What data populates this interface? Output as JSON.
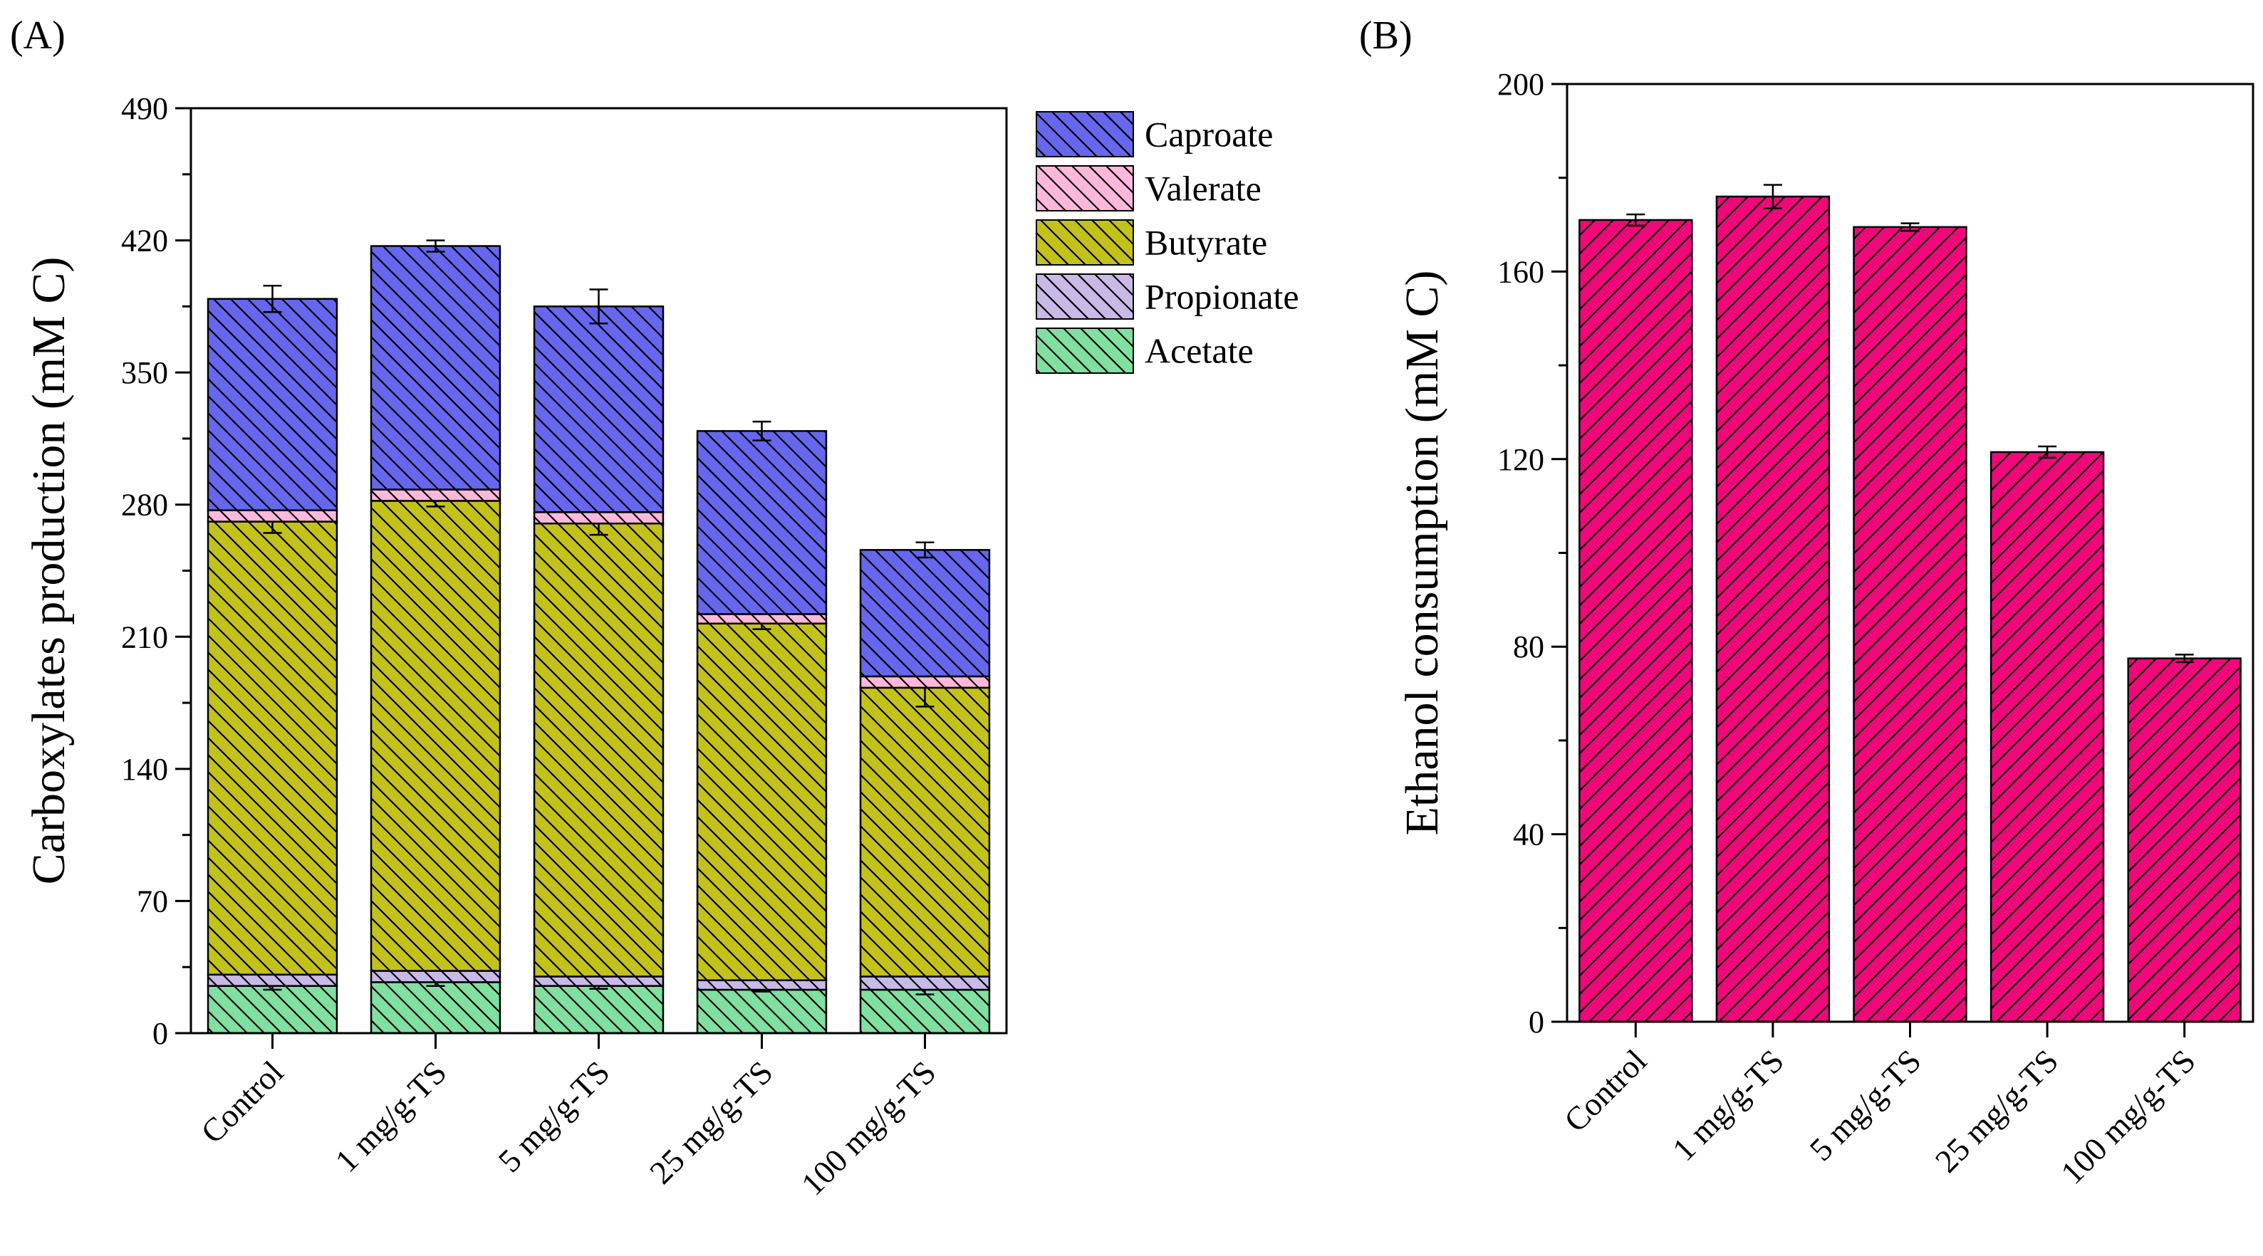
{
  "panels": {
    "a": {
      "label": "(A)"
    },
    "b": {
      "label": "(B)"
    }
  },
  "chart_data": [
    {
      "type": "bar",
      "stacked": true,
      "panel": "(A)",
      "categories": [
        "Control",
        "1 mg/g-TS",
        "5 mg/g-TS",
        "25 mg/g-TS",
        "100 mg/g-TS"
      ],
      "series": [
        {
          "name": "Acetate",
          "color": "#7fe0a0",
          "values": [
            25,
            27,
            25,
            23,
            23
          ],
          "errors": [
            2,
            2,
            1.5,
            1,
            2.5
          ]
        },
        {
          "name": "Propionate",
          "color": "#c8b9e6",
          "values": [
            6,
            6,
            5,
            5,
            7
          ],
          "errors": [
            0,
            0,
            0,
            0,
            0
          ]
        },
        {
          "name": "Butyrate",
          "color": "#c2c21a",
          "values": [
            240,
            249,
            240,
            189,
            153
          ],
          "errors": [
            6,
            3,
            6,
            3,
            10
          ]
        },
        {
          "name": "Valerate",
          "color": "#ffb8dc",
          "values": [
            6,
            6,
            6,
            5,
            6
          ],
          "errors": [
            0,
            0,
            0,
            0,
            0
          ]
        },
        {
          "name": "Caproate",
          "color": "#6666ee",
          "values": [
            112,
            129,
            109,
            97,
            67
          ],
          "errors": [
            7,
            3,
            9,
            5,
            4
          ]
        }
      ],
      "legend": [
        "Caproate",
        "Valerate",
        "Butyrate",
        "Propionate",
        "Acetate"
      ],
      "xlabel": "",
      "ylabel": "Carboxylates production (mM C)",
      "ylim": [
        0,
        490
      ],
      "yticks": [
        0,
        70,
        140,
        210,
        280,
        350,
        420,
        490
      ],
      "grid": false,
      "legend_position": "top-right"
    },
    {
      "type": "bar",
      "panel": "(B)",
      "categories": [
        "Control",
        "1 mg/g-TS",
        "5 mg/g-TS",
        "25 mg/g-TS",
        "100 mg/g-TS"
      ],
      "series": [
        {
          "name": "Ethanol consumption",
          "color": "#f0087a",
          "values": [
            171,
            176,
            169.5,
            121.5,
            77.5
          ],
          "errors": [
            1.2,
            2.5,
            0.8,
            1.2,
            0.8
          ]
        }
      ],
      "xlabel": "",
      "ylabel": "Ethanol consumption (mM C)",
      "ylim": [
        0,
        200
      ],
      "yticks": [
        0,
        40,
        80,
        120,
        160,
        200
      ],
      "grid": false
    }
  ]
}
